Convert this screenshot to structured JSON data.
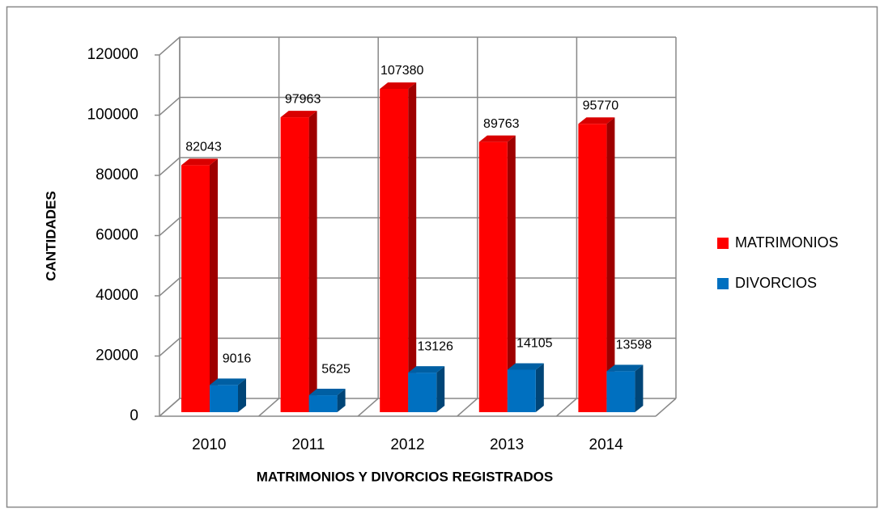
{
  "chart_data": {
    "type": "bar3d",
    "xlabel": "MATRIMONIOS Y DIVORCIOS REGISTRADOS",
    "ylabel": "CANTIDADES",
    "categories": [
      "2010",
      "2011",
      "2012",
      "2013",
      "2014"
    ],
    "series": [
      {
        "name": "MATRIMONIOS",
        "color": "#ff0000",
        "values": [
          82043,
          97963,
          107380,
          89763,
          95770
        ]
      },
      {
        "name": "DIVORCIOS",
        "color": "#0070c0",
        "values": [
          9016,
          5625,
          13126,
          14105,
          13598
        ]
      }
    ],
    "ylim": [
      0,
      120000
    ],
    "yticks": [
      0,
      20000,
      40000,
      60000,
      80000,
      100000,
      120000
    ],
    "grid": true,
    "legend": "right"
  }
}
